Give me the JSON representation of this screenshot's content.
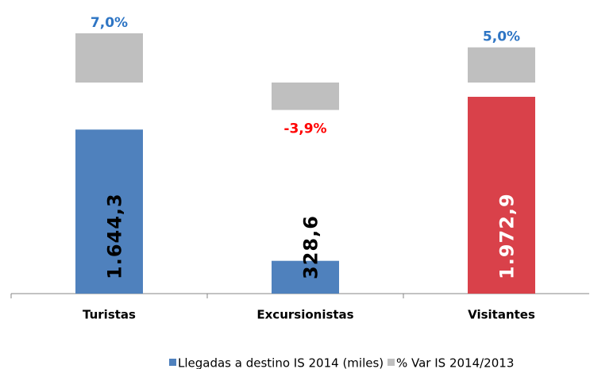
{
  "chart_data": {
    "type": "bar",
    "categories": [
      "Turistas",
      "Excursionistas",
      "Visitantes"
    ],
    "series": [
      {
        "name": "Llegadas a destino IS 2014 (miles)",
        "color": "#4f81bd",
        "colors": [
          "#4f81bd",
          "#4f81bd",
          "#d9414a"
        ],
        "label_colors": [
          "#000000",
          "#000000",
          "#ffffff"
        ],
        "values": [
          1644.3,
          328.6,
          1972.9
        ],
        "value_labels": [
          "1.644,3",
          "328,6",
          "1.972,9"
        ]
      },
      {
        "name": "% Var IS 2014/2013",
        "color": "#bfbfbf",
        "axis": "y2",
        "positive_label_color": "#2e75c4",
        "negative_label_color": "#ff0000",
        "values": [
          7.0,
          -3.9,
          5.0
        ],
        "value_labels": [
          "7,0%",
          "-3,9%",
          "5,0%"
        ]
      }
    ],
    "ylim": [
      0,
      2800
    ],
    "y2lim": [
      -30,
      9.7
    ]
  }
}
